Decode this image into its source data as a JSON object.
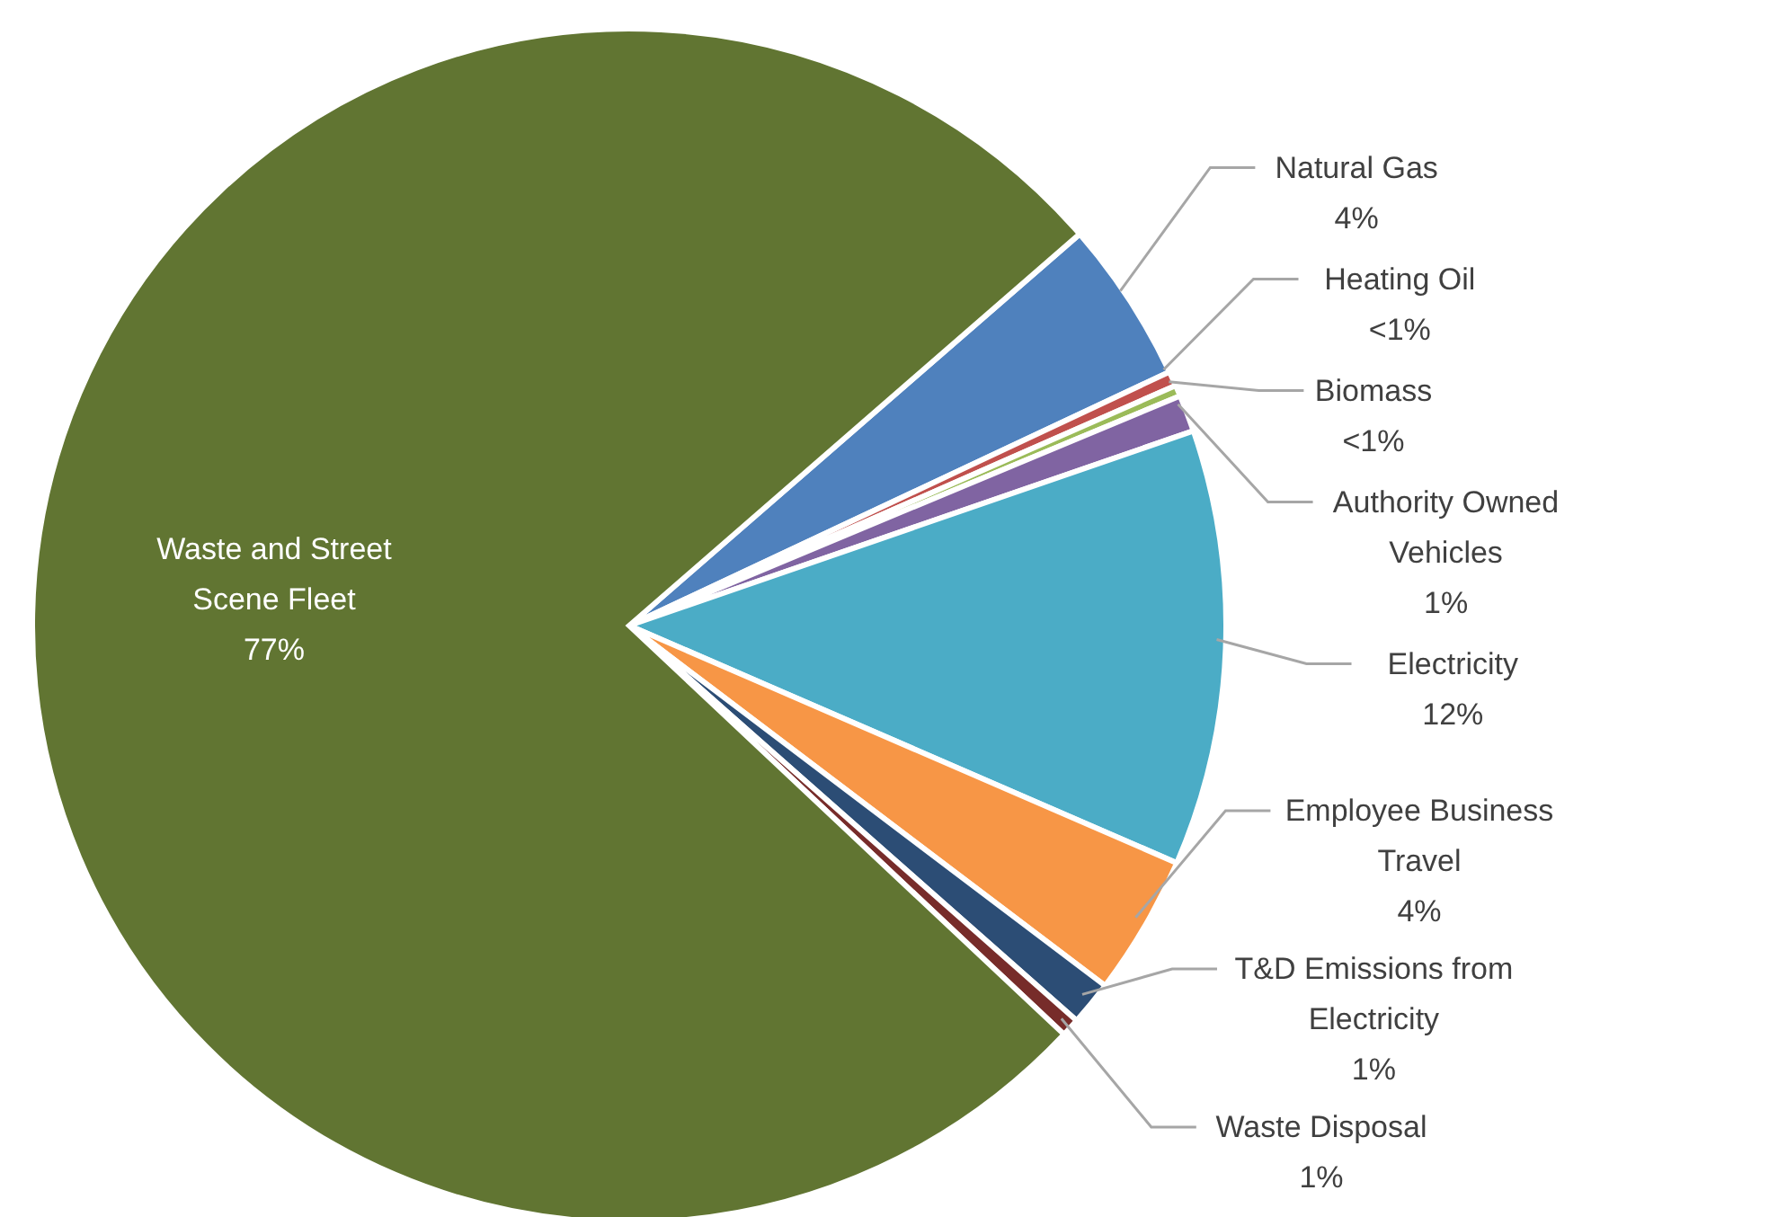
{
  "chart_data": {
    "type": "pie",
    "categories": [
      "Natural Gas",
      "Heating Oil",
      "Biomass",
      "Authority Owned Vehicles",
      "Electricity",
      "Employee Business Travel",
      "T&D Emissions from Electricity",
      "Waste Disposal",
      "Waste and Street Scene Fleet"
    ],
    "values": [
      4.4,
      0.4,
      0.3,
      1.0,
      11.8,
      3.8,
      1.2,
      0.5,
      76.6
    ],
    "value_labels": [
      "4%",
      "<1%",
      "<1%",
      "1%",
      "12%",
      "4%",
      "1%",
      "1%",
      "77%"
    ],
    "colors": [
      "#4f81bd",
      "#c0504d",
      "#9bbb59",
      "#8064a2",
      "#4bacc6",
      "#f79646",
      "#2c4d75",
      "#772c2a",
      "#617532"
    ]
  }
}
